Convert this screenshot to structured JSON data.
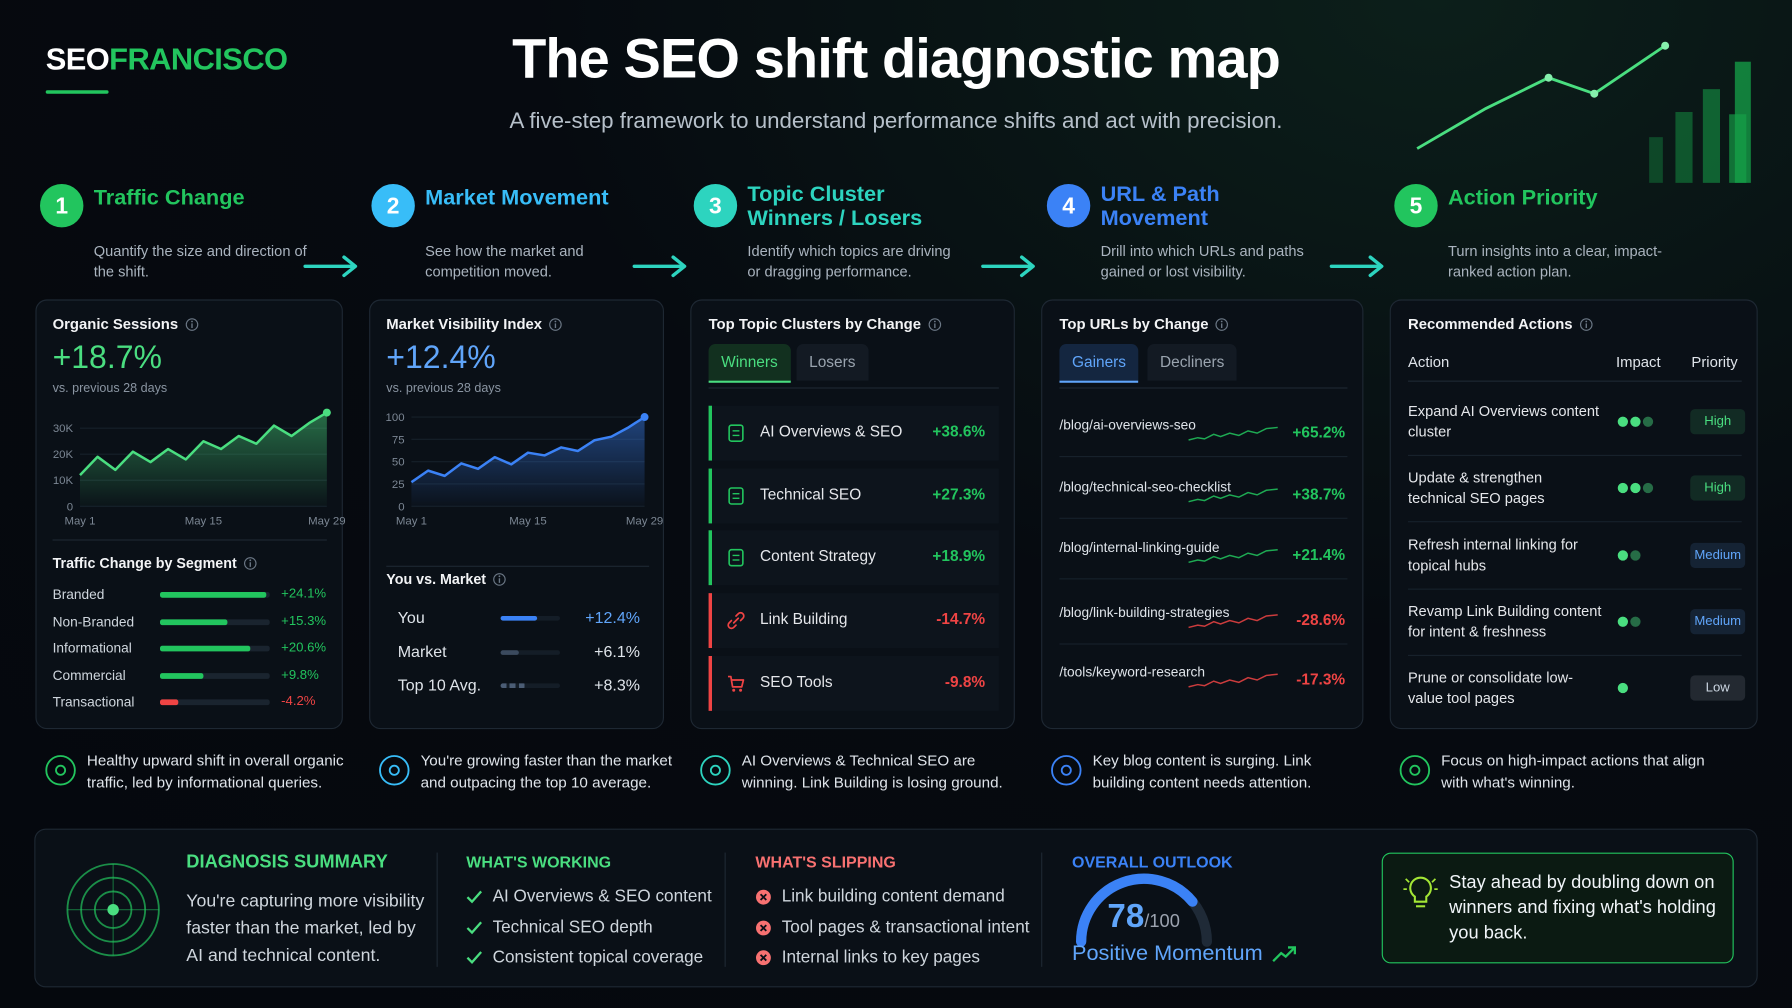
{
  "brand": {
    "prefix": "SEO",
    "highlight": "FRANCISCO"
  },
  "header": {
    "title": "The SEO shift diagnostic map",
    "subtitle": "A five-step framework to understand performance shifts and act with precision."
  },
  "steps": [
    {
      "number": 1,
      "title": "Traffic Change",
      "description": "Quantify the size and direction of the shift.",
      "color": "#22c55e"
    },
    {
      "number": 2,
      "title": "Market Movement",
      "description": "See how the market and competition moved.",
      "color": "#38bdf8"
    },
    {
      "number": 3,
      "title": "Topic Cluster Winners / Losers",
      "description": "Identify which topics are driving or dragging performance.",
      "color": "#2dd4bf"
    },
    {
      "number": 4,
      "title": "URL & Path Movement",
      "description": "Drill into which URLs and paths gained or lost visibility.",
      "color": "#3b82f6"
    },
    {
      "number": 5,
      "title": "Action Priority",
      "description": "Turn insights into a clear, impact-ranked action plan.",
      "color": "#22c55e"
    }
  ],
  "traffic": {
    "title": "Organic Sessions",
    "value": "+18.7%",
    "comparison": "vs. previous 28 days",
    "chart": {
      "type": "line",
      "color": "#4ade80",
      "categories": [
        "May 1",
        null,
        null,
        null,
        null,
        null,
        null,
        "May 15",
        null,
        null,
        null,
        null,
        null,
        null,
        "May 29"
      ],
      "values": [
        12000,
        19000,
        14000,
        21000,
        17000,
        22000,
        18000,
        25000,
        22000,
        27000,
        24000,
        31000,
        27000,
        32000,
        36000
      ],
      "ylim": [
        0,
        36000
      ],
      "yticks": [
        0,
        {
          "value": 10000,
          "label": "10K"
        },
        {
          "value": 20000,
          "label": "20K"
        },
        {
          "value": 30000,
          "label": "30K"
        }
      ]
    },
    "segments": {
      "title": "Traffic Change by Segment",
      "xlim": [
        0,
        25
      ],
      "items": [
        {
          "name": "Branded",
          "value": 24.1,
          "value_label": "+24.1%",
          "color": "#22c55e"
        },
        {
          "name": "Non-Branded",
          "value": 15.3,
          "value_label": "+15.3%",
          "color": "#22c55e"
        },
        {
          "name": "Informational",
          "value": 20.6,
          "value_label": "+20.6%",
          "color": "#22c55e"
        },
        {
          "name": "Commercial",
          "value": 9.8,
          "value_label": "+9.8%",
          "color": "#22c55e"
        },
        {
          "name": "Transactional",
          "value": -4.2,
          "value_label": "-4.2%",
          "color": "#ef4444"
        }
      ]
    }
  },
  "market": {
    "title": "Market Visibility Index",
    "value": "+12.4%",
    "comparison": "vs. previous 28 days",
    "chart": {
      "type": "line",
      "color": "#3b82f6",
      "categories": [
        "May 1",
        null,
        null,
        null,
        null,
        null,
        null,
        "May 15",
        null,
        null,
        null,
        null,
        null,
        null,
        "May 29"
      ],
      "values": [
        27,
        40,
        34,
        48,
        42,
        55,
        47,
        60,
        57,
        66,
        62,
        74,
        78,
        88,
        100
      ],
      "ylim": [
        0,
        105
      ],
      "yticks": [
        0,
        25,
        50,
        75,
        100
      ]
    },
    "comparison_table": {
      "title": "You vs. Market",
      "xlim": [
        0,
        20
      ],
      "rows": [
        {
          "name": "You",
          "value": 12.4,
          "value_label": "+12.4%",
          "color": "#3b82f6",
          "line_style": "solid"
        },
        {
          "name": "Market",
          "value": 6.1,
          "value_label": "+6.1%",
          "color": "#3b4a5e",
          "line_style": "solid"
        },
        {
          "name": "Top 10 Avg.",
          "value": 8.3,
          "value_label": "+8.3%",
          "color": "#4b5d75",
          "line_style": "dashed"
        }
      ]
    }
  },
  "topics": {
    "title": "Top Topic Clusters by Change",
    "tabs": [
      "Winners",
      "Losers"
    ],
    "items": [
      {
        "name": "AI Overviews & SEO",
        "change": "+38.6%",
        "color": "#22c55e"
      },
      {
        "name": "Technical SEO",
        "change": "+27.3%",
        "color": "#22c55e"
      },
      {
        "name": "Content Strategy",
        "change": "+18.9%",
        "color": "#22c55e"
      },
      {
        "name": "Link Building",
        "change": "-14.7%",
        "color": "#ef4444"
      },
      {
        "name": "SEO Tools",
        "change": "-9.8%",
        "color": "#ef4444"
      }
    ]
  },
  "urls": {
    "title": "Top URLs by Change",
    "tabs": [
      "Gainers",
      "Decliners"
    ],
    "items": [
      {
        "path": "/blog/ai-overviews-seo",
        "change": "+65.2%",
        "color": "#22c55e"
      },
      {
        "path": "/blog/technical-seo-checklist",
        "change": "+38.7%",
        "color": "#22c55e"
      },
      {
        "path": "/blog/internal-linking-guide",
        "change": "+21.4%",
        "color": "#22c55e"
      },
      {
        "path": "/blog/link-building-strategies",
        "change": "-28.6%",
        "color": "#ef4444"
      },
      {
        "path": "/tools/keyword-research",
        "change": "-17.3%",
        "color": "#ef4444"
      }
    ]
  },
  "actions": {
    "title": "Recommended Actions",
    "columns": [
      "Action",
      "Impact",
      "Priority"
    ],
    "rows": [
      {
        "action": "Expand AI Overviews content cluster",
        "impact": 2.5,
        "priority": "High",
        "priority_color": "#4ade80"
      },
      {
        "action": "Update & strengthen technical SEO pages",
        "impact": 2.5,
        "priority": "High",
        "priority_color": "#4ade80"
      },
      {
        "action": "Refresh internal linking for topical hubs",
        "impact": 1.5,
        "priority": "Medium",
        "priority_color": "#60a5fa"
      },
      {
        "action": "Revamp Link Building content for intent & freshness",
        "impact": 1.5,
        "priority": "Medium",
        "priority_color": "#60a5fa"
      },
      {
        "action": "Prune or consolidate low-value tool pages",
        "impact": 1,
        "priority": "Low",
        "priority_color": "#cbd5e1"
      }
    ]
  },
  "insights": [
    "Healthy upward shift in overall organic traffic, led by informational queries.",
    "You're growing faster than the market and outpacing the top 10 average.",
    "AI Overviews & Technical SEO are winning. Link Building is losing ground.",
    "Key blog content is surging. Link building content needs attention.",
    "Focus on high-impact actions that align with what's winning."
  ],
  "summary": {
    "title": "DIAGNOSIS SUMMARY",
    "text": "You're capturing more visibility faster than the market, led by AI and technical content.",
    "working": {
      "title": "WHAT'S WORKING",
      "items": [
        "AI Overviews & SEO content",
        "Technical SEO depth",
        "Consistent topical coverage"
      ]
    },
    "slipping": {
      "title": "WHAT'S SLIPPING",
      "items": [
        "Link building content demand",
        "Tool pages & transactional intent",
        "Internal links to key pages"
      ]
    },
    "outlook": {
      "title": "OVERALL OUTLOOK",
      "score": 78,
      "scale_label": "/100",
      "scale_max": 100,
      "status": "Positive Momentum"
    },
    "cta": "Stay ahead by doubling down on winners and fixing what's holding you back."
  }
}
